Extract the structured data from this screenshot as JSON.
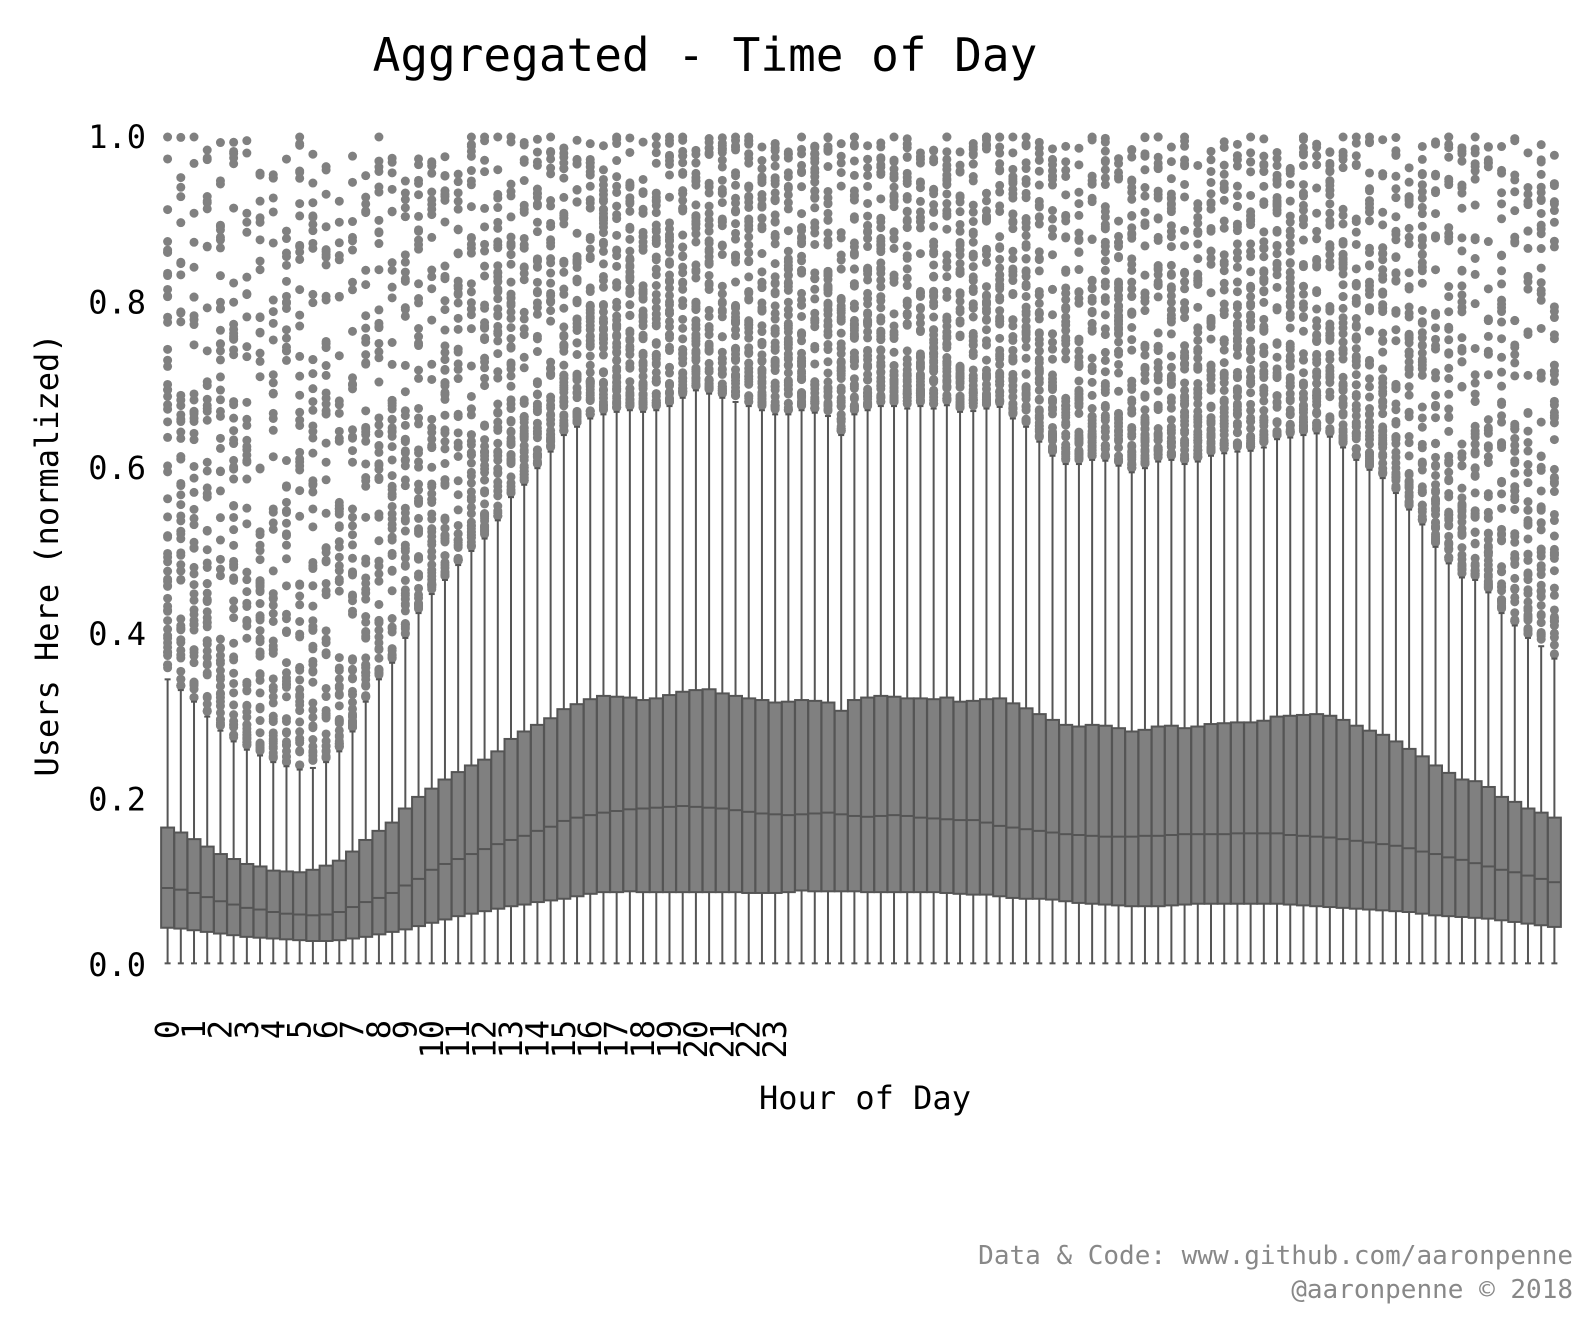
{
  "chart_data": {
    "type": "box",
    "title": "Aggregated - Time of Day",
    "xlabel": "Hour of Day",
    "ylabel": "Users Here (normalized)",
    "ylim": [
      0.0,
      1.0
    ],
    "yticks": [
      "0.0",
      "0.2",
      "0.4",
      "0.6",
      "0.8",
      "1.0"
    ],
    "xticks": [
      "0",
      "1",
      "2",
      "3",
      "4",
      "5",
      "6",
      "7",
      "8",
      "9",
      "10",
      "11",
      "12",
      "13",
      "14",
      "15",
      "16",
      "17",
      "18",
      "19",
      "20",
      "21",
      "22",
      "23"
    ],
    "boxes_per_hour": 2,
    "box_stats": {
      "median": [
        0.093,
        0.091,
        0.087,
        0.082,
        0.077,
        0.073,
        0.069,
        0.067,
        0.064,
        0.062,
        0.061,
        0.06,
        0.061,
        0.064,
        0.07,
        0.076,
        0.081,
        0.087,
        0.096,
        0.104,
        0.115,
        0.122,
        0.128,
        0.134,
        0.14,
        0.146,
        0.151,
        0.156,
        0.162,
        0.167,
        0.174,
        0.178,
        0.181,
        0.184,
        0.186,
        0.188,
        0.189,
        0.19,
        0.191,
        0.192,
        0.191,
        0.19,
        0.189,
        0.187,
        0.185,
        0.183,
        0.182,
        0.181,
        0.182,
        0.183,
        0.184,
        0.182,
        0.18,
        0.179,
        0.18,
        0.181,
        0.18,
        0.178,
        0.177,
        0.176,
        0.175,
        0.175,
        0.172,
        0.168,
        0.166,
        0.164,
        0.162,
        0.16,
        0.158,
        0.157,
        0.156,
        0.155,
        0.155,
        0.155,
        0.156,
        0.156,
        0.157,
        0.158,
        0.158,
        0.158,
        0.158,
        0.159,
        0.159,
        0.159,
        0.159,
        0.157,
        0.156,
        0.155,
        0.154,
        0.152,
        0.15,
        0.148,
        0.146,
        0.144,
        0.141,
        0.137,
        0.134,
        0.13,
        0.127,
        0.123,
        0.119,
        0.115,
        0.112,
        0.108,
        0.104,
        0.1
      ],
      "q1": [
        0.045,
        0.044,
        0.042,
        0.04,
        0.038,
        0.036,
        0.034,
        0.033,
        0.032,
        0.031,
        0.03,
        0.029,
        0.029,
        0.03,
        0.032,
        0.034,
        0.037,
        0.04,
        0.043,
        0.047,
        0.051,
        0.055,
        0.059,
        0.062,
        0.065,
        0.068,
        0.071,
        0.073,
        0.076,
        0.078,
        0.08,
        0.083,
        0.086,
        0.088,
        0.088,
        0.089,
        0.088,
        0.088,
        0.088,
        0.088,
        0.088,
        0.088,
        0.088,
        0.088,
        0.087,
        0.087,
        0.087,
        0.088,
        0.09,
        0.089,
        0.089,
        0.089,
        0.089,
        0.088,
        0.088,
        0.088,
        0.088,
        0.088,
        0.088,
        0.087,
        0.086,
        0.085,
        0.085,
        0.083,
        0.081,
        0.08,
        0.08,
        0.079,
        0.077,
        0.075,
        0.074,
        0.073,
        0.072,
        0.071,
        0.071,
        0.071,
        0.072,
        0.073,
        0.074,
        0.074,
        0.074,
        0.074,
        0.074,
        0.074,
        0.074,
        0.073,
        0.072,
        0.071,
        0.07,
        0.069,
        0.068,
        0.067,
        0.066,
        0.065,
        0.064,
        0.062,
        0.06,
        0.059,
        0.058,
        0.057,
        0.056,
        0.054,
        0.052,
        0.05,
        0.048,
        0.046
      ],
      "q3": [
        0.166,
        0.16,
        0.152,
        0.143,
        0.134,
        0.128,
        0.122,
        0.119,
        0.114,
        0.113,
        0.112,
        0.115,
        0.12,
        0.126,
        0.137,
        0.151,
        0.162,
        0.172,
        0.189,
        0.203,
        0.213,
        0.224,
        0.233,
        0.241,
        0.248,
        0.258,
        0.273,
        0.282,
        0.29,
        0.298,
        0.309,
        0.315,
        0.321,
        0.325,
        0.324,
        0.323,
        0.32,
        0.322,
        0.326,
        0.33,
        0.332,
        0.333,
        0.328,
        0.325,
        0.322,
        0.32,
        0.317,
        0.318,
        0.32,
        0.319,
        0.317,
        0.307,
        0.32,
        0.323,
        0.325,
        0.324,
        0.322,
        0.322,
        0.321,
        0.323,
        0.318,
        0.319,
        0.321,
        0.322,
        0.316,
        0.31,
        0.303,
        0.296,
        0.29,
        0.288,
        0.29,
        0.289,
        0.286,
        0.282,
        0.284,
        0.288,
        0.289,
        0.286,
        0.288,
        0.291,
        0.292,
        0.293,
        0.293,
        0.295,
        0.3,
        0.301,
        0.302,
        0.303,
        0.301,
        0.296,
        0.289,
        0.283,
        0.278,
        0.27,
        0.261,
        0.252,
        0.241,
        0.232,
        0.224,
        0.222,
        0.215,
        0.203,
        0.197,
        0.189,
        0.184,
        0.178
      ],
      "whisker_low": [
        0.002,
        0.002,
        0.002,
        0.002,
        0.002,
        0.002,
        0.002,
        0.002,
        0.002,
        0.002,
        0.002,
        0.002,
        0.002,
        0.002,
        0.002,
        0.002,
        0.002,
        0.002,
        0.002,
        0.002,
        0.002,
        0.002,
        0.002,
        0.002,
        0.002,
        0.002,
        0.002,
        0.002,
        0.002,
        0.002,
        0.002,
        0.002,
        0.002,
        0.002,
        0.002,
        0.002,
        0.002,
        0.002,
        0.002,
        0.002,
        0.002,
        0.002,
        0.002,
        0.002,
        0.002,
        0.002,
        0.002,
        0.002,
        0.002,
        0.002,
        0.002,
        0.002,
        0.002,
        0.002,
        0.002,
        0.002,
        0.002,
        0.002,
        0.002,
        0.002,
        0.002,
        0.002,
        0.002,
        0.002,
        0.002,
        0.002,
        0.002,
        0.002,
        0.002,
        0.002,
        0.002,
        0.002,
        0.002,
        0.002,
        0.002,
        0.002,
        0.002,
        0.002,
        0.002,
        0.002,
        0.002,
        0.002,
        0.002,
        0.002,
        0.002,
        0.002,
        0.002,
        0.002,
        0.002,
        0.002,
        0.002,
        0.002,
        0.002,
        0.002,
        0.002,
        0.002,
        0.002,
        0.002,
        0.002,
        0.002,
        0.002,
        0.002,
        0.002,
        0.002,
        0.002,
        0.002
      ],
      "whisker_high": [
        0.345,
        0.332,
        0.318,
        0.3,
        0.283,
        0.27,
        0.26,
        0.253,
        0.245,
        0.24,
        0.236,
        0.238,
        0.245,
        0.258,
        0.282,
        0.318,
        0.345,
        0.365,
        0.395,
        0.425,
        0.448,
        0.465,
        0.483,
        0.5,
        0.515,
        0.537,
        0.565,
        0.58,
        0.6,
        0.62,
        0.64,
        0.65,
        0.66,
        0.665,
        0.668,
        0.67,
        0.668,
        0.67,
        0.675,
        0.685,
        0.694,
        0.69,
        0.685,
        0.68,
        0.675,
        0.67,
        0.665,
        0.665,
        0.67,
        0.667,
        0.663,
        0.64,
        0.665,
        0.67,
        0.675,
        0.675,
        0.672,
        0.675,
        0.672,
        0.676,
        0.668,
        0.669,
        0.672,
        0.674,
        0.66,
        0.65,
        0.632,
        0.615,
        0.605,
        0.605,
        0.61,
        0.609,
        0.603,
        0.595,
        0.6,
        0.608,
        0.61,
        0.605,
        0.608,
        0.615,
        0.618,
        0.62,
        0.621,
        0.625,
        0.635,
        0.637,
        0.64,
        0.642,
        0.638,
        0.625,
        0.61,
        0.598,
        0.588,
        0.57,
        0.55,
        0.532,
        0.505,
        0.485,
        0.468,
        0.465,
        0.45,
        0.425,
        0.41,
        0.395,
        0.385,
        0.37
      ]
    },
    "outlier_range": "points above the upper whisker extend up to 1.0 for most hours",
    "colors": {
      "box": "#808080",
      "edge": "#555555",
      "outlier": "#808080"
    }
  },
  "footer": {
    "line1": "Data & Code: www.github.com/aaronpenne",
    "line2": "@aaronpenne © 2018"
  }
}
